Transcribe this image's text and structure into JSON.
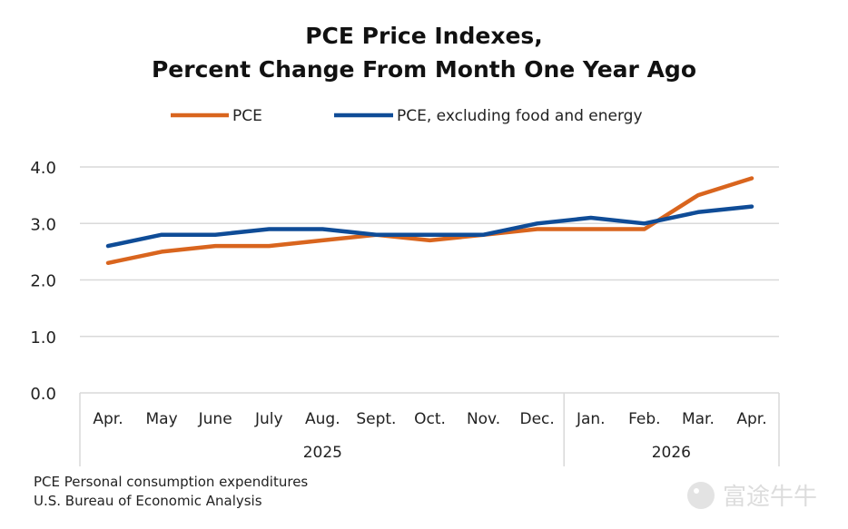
{
  "chart_data": {
    "type": "line",
    "title": [
      "PCE Price Indexes,",
      "Percent Change From Month One Year Ago"
    ],
    "categories": [
      "Apr.",
      "May",
      "June",
      "July",
      "Aug.",
      "Sept.",
      "Oct.",
      "Nov.",
      "Dec.",
      "Jan.",
      "Feb.",
      "Mar.",
      "Apr."
    ],
    "year_groups": [
      {
        "label": "2025",
        "start": 0,
        "end": 8
      },
      {
        "label": "2026",
        "start": 9,
        "end": 12
      }
    ],
    "series": [
      {
        "name": "PCE",
        "color": "#d9651e",
        "values": [
          2.3,
          2.5,
          2.6,
          2.6,
          2.7,
          2.8,
          2.7,
          2.8,
          2.9,
          2.9,
          2.9,
          3.5,
          3.8
        ]
      },
      {
        "name": "PCE, excluding food and energy",
        "color": "#0f4c97",
        "values": [
          2.6,
          2.8,
          2.8,
          2.9,
          2.9,
          2.8,
          2.8,
          2.8,
          3.0,
          3.1,
          3.0,
          3.2,
          3.3
        ]
      }
    ],
    "ylim": [
      0,
      4
    ],
    "yticks": [
      "0.0",
      "1.0",
      "2.0",
      "3.0",
      "4.0"
    ],
    "xlabel": "",
    "ylabel": "",
    "grid": true,
    "legend_position": "top"
  },
  "footer": {
    "source_line1": "PCE Personal consumption expenditures",
    "source_line2": "U.S. Bureau of Economic Analysis"
  },
  "watermark": {
    "text": "富途牛牛"
  }
}
